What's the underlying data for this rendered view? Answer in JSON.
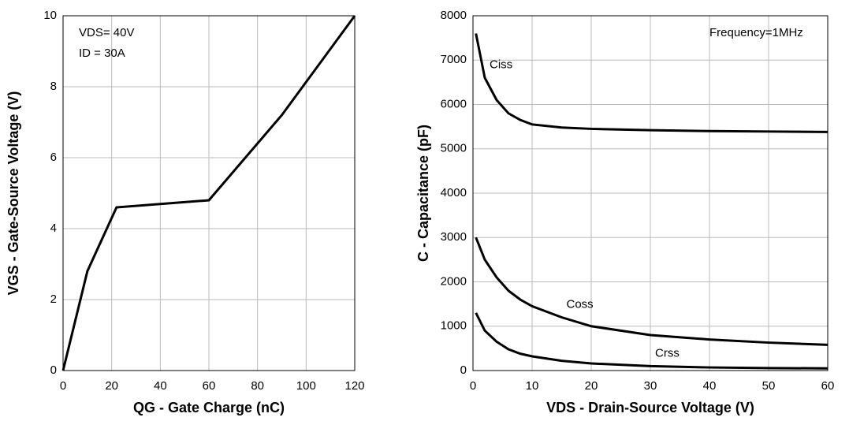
{
  "chart_data": [
    {
      "type": "line",
      "title_x": "QG - Gate Charge (nC)",
      "title_y": "VGS - Gate-Source Voltage (V)",
      "annotations": [
        "VDS= 40V",
        "ID = 30A"
      ],
      "x": [
        0,
        10,
        22,
        60,
        90,
        120
      ],
      "series": [
        {
          "name": null,
          "color": "#000000",
          "values": [
            0,
            2.8,
            4.6,
            4.8,
            7.2,
            10
          ]
        }
      ],
      "xlim": [
        0,
        120
      ],
      "xticks": [
        0,
        20,
        40,
        60,
        80,
        100,
        120
      ],
      "ylim": [
        0,
        10
      ],
      "yticks": [
        0,
        2,
        4,
        6,
        8,
        10
      ],
      "grid": true
    },
    {
      "type": "line",
      "title_x": "VDS - Drain-Source Voltage (V)",
      "title_y": "C - Capacitance (pF)",
      "annotations": [
        "Frequency=1MHz"
      ],
      "x": [
        0.5,
        2,
        4,
        6,
        8,
        10,
        15,
        20,
        30,
        40,
        50,
        60
      ],
      "series": [
        {
          "name": "Ciss",
          "color": "#000000",
          "values": [
            7600,
            6600,
            6100,
            5800,
            5650,
            5550,
            5480,
            5450,
            5420,
            5400,
            5390,
            5380
          ]
        },
        {
          "name": "Coss",
          "color": "#000000",
          "values": [
            3000,
            2500,
            2100,
            1800,
            1600,
            1450,
            1200,
            1000,
            800,
            700,
            630,
            580
          ]
        },
        {
          "name": "Crss",
          "color": "#000000",
          "values": [
            1300,
            900,
            650,
            480,
            380,
            320,
            220,
            160,
            100,
            70,
            55,
            50
          ]
        }
      ],
      "xlim": [
        0,
        60
      ],
      "xticks": [
        0,
        10,
        20,
        30,
        40,
        50,
        60
      ],
      "ylim": [
        0,
        8000
      ],
      "yticks": [
        0,
        1000,
        2000,
        3000,
        4000,
        5000,
        6000,
        7000,
        8000
      ],
      "grid": true
    }
  ]
}
